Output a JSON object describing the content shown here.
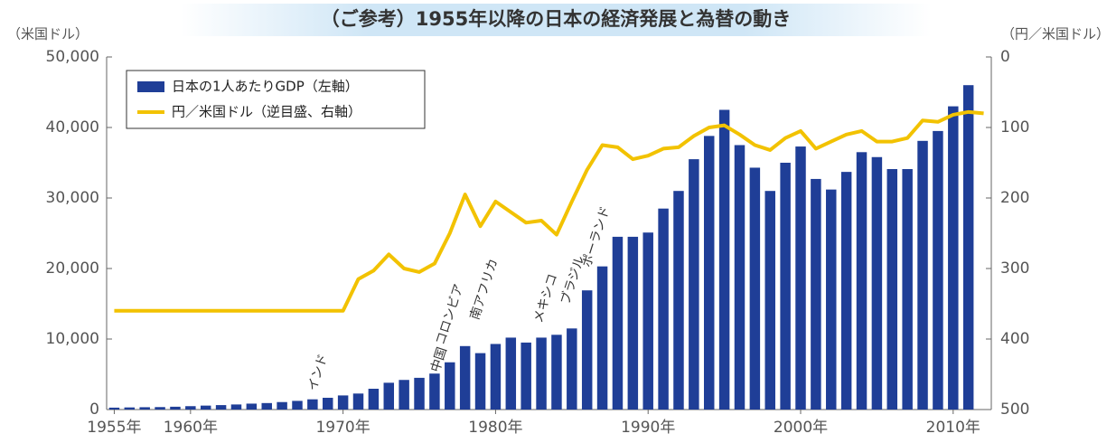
{
  "chart_data": {
    "type": "bar_line",
    "title": "（ご参考）1955年以降の日本の経済発展と為替の動き",
    "y_label": "（米国ドル）",
    "y2_label": "（円／米国ドル）",
    "x": [
      1955,
      1956,
      1957,
      1958,
      1959,
      1960,
      1961,
      1962,
      1963,
      1964,
      1965,
      1966,
      1967,
      1968,
      1969,
      1970,
      1971,
      1972,
      1973,
      1974,
      1975,
      1976,
      1977,
      1978,
      1979,
      1980,
      1981,
      1982,
      1983,
      1984,
      1985,
      1986,
      1987,
      1988,
      1989,
      1990,
      1991,
      1992,
      1993,
      1994,
      1995,
      1996,
      1997,
      1998,
      1999,
      2000,
      2001,
      2002,
      2003,
      2004,
      2005,
      2006,
      2007,
      2008,
      2009,
      2010,
      2011,
      2012
    ],
    "series": [
      {
        "name": "日本の1人あたりGDP（左軸）",
        "color": "#1f3e97",
        "kind": "bar",
        "values": [
          270,
          300,
          330,
          350,
          400,
          480,
          560,
          630,
          720,
          840,
          920,
          1060,
          1230,
          1450,
          1670,
          2000,
          2270,
          2950,
          3800,
          4200,
          4500,
          5100,
          6700,
          9000,
          8000,
          9300,
          10200,
          9500,
          10200,
          10600,
          11500,
          16900,
          20300,
          24500,
          24500,
          25100,
          28500,
          31000,
          35500,
          38800,
          42500,
          37500,
          34300,
          31000,
          35000,
          37300,
          32700,
          31200,
          33700,
          36500,
          35800,
          34100,
          34100,
          38100,
          39500,
          43000,
          46000,
          null
        ]
      },
      {
        "name": "円／米国ドル（逆目盛、右軸）",
        "color": "#f2c200",
        "kind": "line",
        "axis": "y2",
        "values": [
          360,
          360,
          360,
          360,
          360,
          360,
          360,
          360,
          360,
          360,
          360,
          360,
          360,
          360,
          360,
          360,
          315,
          303,
          280,
          300,
          305,
          293,
          250,
          195,
          240,
          205,
          220,
          235,
          232,
          252,
          205,
          160,
          125,
          128,
          145,
          140,
          130,
          128,
          112,
          100,
          97,
          110,
          125,
          132,
          115,
          105,
          130,
          120,
          110,
          105,
          120,
          120,
          115,
          90,
          92,
          82,
          78,
          80
        ]
      }
    ],
    "annotations": [
      "インド",
      "中国",
      "コロンビア",
      "南アフリカ",
      "メキシコ",
      "ブラジル",
      "ポーランド"
    ],
    "xlim": [
      1954.5,
      2012.5
    ],
    "xticks": [
      {
        "value": 1955,
        "label": "1955年"
      },
      {
        "value": 1960,
        "label": "1960年"
      },
      {
        "value": 1970,
        "label": "1970年"
      },
      {
        "value": 1980,
        "label": "1980年"
      },
      {
        "value": 1990,
        "label": "1990年"
      },
      {
        "value": 2000,
        "label": "2000年"
      },
      {
        "value": 2010,
        "label": "2010年"
      }
    ],
    "ylim": [
      0,
      50000
    ],
    "yticks": [
      0,
      {
        "value": 10000,
        "label": "10,000"
      },
      {
        "value": 20000,
        "label": "20,000"
      },
      {
        "value": 30000,
        "label": "30,000"
      },
      {
        "value": 40000,
        "label": "40,000"
      },
      {
        "value": 50000,
        "label": "50,000"
      }
    ],
    "y2lim": [
      0,
      500
    ],
    "y2_inverted": true,
    "y2ticks": [
      0,
      100,
      200,
      300,
      400,
      500
    ],
    "legend": "upper left",
    "grid": false
  }
}
